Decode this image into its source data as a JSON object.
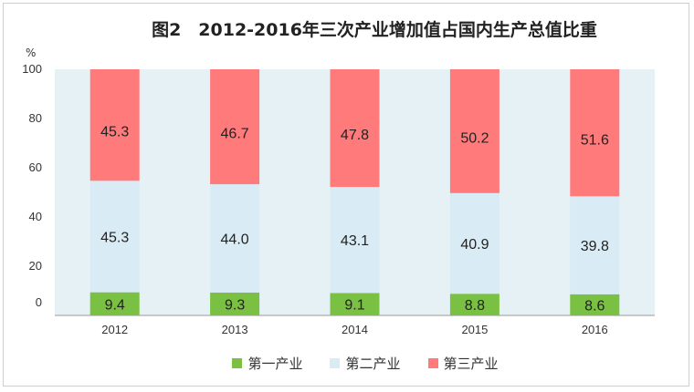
{
  "chart_data": {
    "type": "bar",
    "stacked": true,
    "title": "图2　2012-2016年三次产业增加值占国内生产总值比重",
    "ylabel": "%",
    "xlabel": "",
    "ylim": [
      0,
      100
    ],
    "yticks": [
      0,
      20,
      40,
      60,
      80,
      100
    ],
    "categories": [
      "2012",
      "2013",
      "2014",
      "2015",
      "2016"
    ],
    "series": [
      {
        "name": "第一产业",
        "color": "#7ac143",
        "values": [
          9.4,
          9.3,
          9.1,
          8.8,
          8.6
        ]
      },
      {
        "name": "第二产业",
        "color": "#d9ebf4",
        "values": [
          45.3,
          44.0,
          43.1,
          40.9,
          39.8
        ]
      },
      {
        "name": "第三产业",
        "color": "#ff7b7b",
        "values": [
          45.3,
          46.7,
          47.8,
          50.2,
          51.6
        ]
      }
    ],
    "value_labels": [
      [
        "9.4",
        "9.3",
        "9.1",
        "8.8",
        "8.6"
      ],
      [
        "45.3",
        "44.0",
        "43.1",
        "40.9",
        "39.8"
      ],
      [
        "45.3",
        "46.7",
        "47.8",
        "50.2",
        "51.6"
      ]
    ],
    "plot_background": "#e6f1f6",
    "legend_position": "bottom",
    "grid": false
  }
}
